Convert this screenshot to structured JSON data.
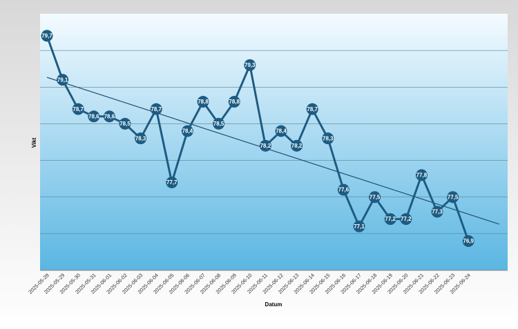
{
  "chart_data": {
    "type": "line",
    "x_label": "Datum",
    "y_label": "Vikt",
    "categories": [
      "2025-05-28",
      "2025-05-29",
      "2025-05-30",
      "2025-05-31",
      "2025-06-01",
      "2025-06-02",
      "2025-06-03",
      "2025-06-04",
      "2025-06-05",
      "2025-06-06",
      "2025-06-07",
      "2025-06-08",
      "2025-06-09",
      "2025-06-10",
      "2025-06-11",
      "2025-06-12",
      "2025-06-13",
      "2025-06-14",
      "2025-06-15",
      "2025-06-16",
      "2025-06-17",
      "2025-06-18",
      "2025-06-19",
      "2025-06-20",
      "2025-06-21",
      "2025-06-22",
      "2025-06-23",
      "2025-06-24"
    ],
    "values": [
      79.7,
      79.1,
      78.7,
      78.6,
      78.6,
      78.5,
      78.3,
      78.7,
      77.7,
      78.4,
      78.8,
      78.5,
      78.8,
      79.3,
      78.2,
      78.4,
      78.2,
      78.7,
      78.3,
      77.6,
      77.1,
      77.5,
      77.2,
      77.2,
      77.8,
      77.3,
      77.5,
      76.9
    ],
    "value_labels": [
      "79,7",
      "79,1",
      "78,7",
      "78,6",
      "78,6",
      "78,5",
      "78,3",
      "78,7",
      "77,7",
      "78,4",
      "78,8",
      "78,5",
      "78,8",
      "79,3",
      "78,2",
      "78,4",
      "78,2",
      "78,7",
      "78,3",
      "77,6",
      "77,1",
      "77,5",
      "77,2",
      "77,2",
      "77,8",
      "77,3",
      "77,5",
      "76,9"
    ],
    "color": "#1d5b82",
    "ylim": [
      76.5,
      80
    ],
    "yticks": [
      77,
      77.5,
      78,
      78.5,
      79,
      79.5
    ],
    "grid": true,
    "trendline": true
  }
}
